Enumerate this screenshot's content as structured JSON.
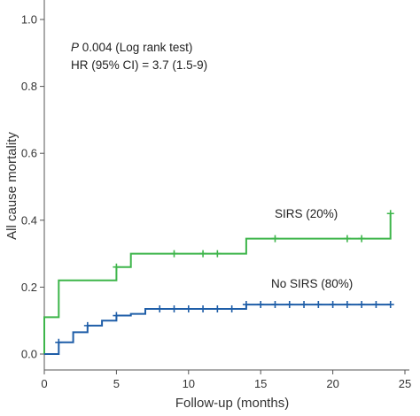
{
  "chart_data": {
    "type": "line",
    "subtype": "kaplan-meier-step",
    "xlabel": "Follow-up (months)",
    "ylabel": "All cause mortality",
    "xlim": [
      0,
      25
    ],
    "ylim": [
      0,
      1.0
    ],
    "x_ticks": [
      "0",
      "5",
      "10",
      "15",
      "20",
      "25"
    ],
    "y_ticks": [
      "0.0",
      "0.2",
      "0.4",
      "0.6",
      "0.8",
      "1.0"
    ],
    "grid": false,
    "annotations": {
      "p_label": "P",
      "p_text": " 0.004 (Log rank test)",
      "hr_text": "HR (95% CI) = 3.7 (1.5-9)"
    },
    "series": [
      {
        "name": "SIRS (20%)",
        "color": "#3db54a",
        "steps": [
          [
            0,
            0.0
          ],
          [
            0,
            0.11
          ],
          [
            1,
            0.11
          ],
          [
            1,
            0.22
          ],
          [
            5,
            0.22
          ],
          [
            5,
            0.26
          ],
          [
            6,
            0.26
          ],
          [
            6,
            0.3
          ],
          [
            14,
            0.3
          ],
          [
            14,
            0.345
          ],
          [
            24,
            0.345
          ],
          [
            24,
            0.42
          ]
        ],
        "censored": [
          [
            5,
            0.26
          ],
          [
            9,
            0.3
          ],
          [
            11,
            0.3
          ],
          [
            12,
            0.3
          ],
          [
            16,
            0.345
          ],
          [
            21,
            0.345
          ],
          [
            22,
            0.345
          ],
          [
            24,
            0.42
          ]
        ]
      },
      {
        "name": "No SIRS (80%)",
        "color": "#1f5ea8",
        "steps": [
          [
            0,
            0.0
          ],
          [
            1,
            0.0
          ],
          [
            1,
            0.035
          ],
          [
            2,
            0.035
          ],
          [
            2,
            0.065
          ],
          [
            3,
            0.065
          ],
          [
            3,
            0.085
          ],
          [
            4,
            0.085
          ],
          [
            4,
            0.1
          ],
          [
            5,
            0.1
          ],
          [
            5,
            0.115
          ],
          [
            6,
            0.115
          ],
          [
            6,
            0.12
          ],
          [
            7,
            0.12
          ],
          [
            7,
            0.135
          ],
          [
            14,
            0.135
          ],
          [
            14,
            0.148
          ],
          [
            24,
            0.148
          ]
        ],
        "censored": [
          [
            1,
            0.035
          ],
          [
            3,
            0.085
          ],
          [
            5,
            0.115
          ],
          [
            8,
            0.135
          ],
          [
            9,
            0.135
          ],
          [
            10,
            0.135
          ],
          [
            11,
            0.135
          ],
          [
            12,
            0.135
          ],
          [
            13,
            0.135
          ],
          [
            14,
            0.148
          ],
          [
            15,
            0.148
          ],
          [
            16,
            0.148
          ],
          [
            17,
            0.148
          ],
          [
            18,
            0.148
          ],
          [
            19,
            0.148
          ],
          [
            20,
            0.148
          ],
          [
            21,
            0.148
          ],
          [
            22,
            0.148
          ],
          [
            23,
            0.148
          ],
          [
            24,
            0.148
          ]
        ]
      }
    ]
  }
}
